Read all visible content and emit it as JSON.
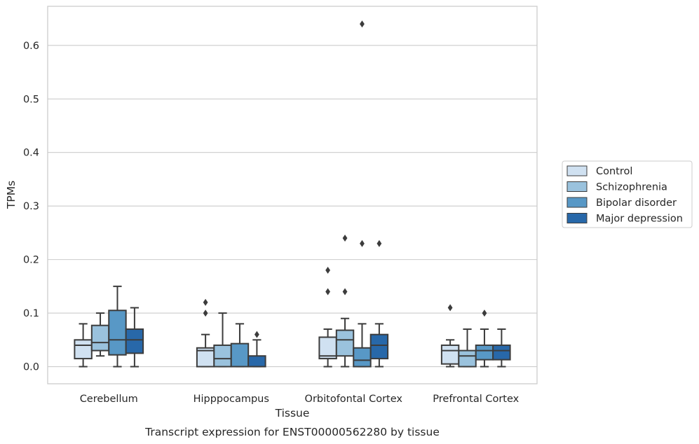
{
  "chart_data": {
    "type": "boxplot",
    "title": "",
    "xlabel": "Tissue",
    "ylabel": "TPMs",
    "caption": "Transcript expression for ENST00000562280 by tissue",
    "ylim": [
      -0.032,
      0.673
    ],
    "yticks": [
      0.0,
      0.1,
      0.2,
      0.3,
      0.4,
      0.5,
      0.6
    ],
    "ytick_labels": [
      "0.0",
      "0.1",
      "0.2",
      "0.3",
      "0.4",
      "0.5",
      "0.6"
    ],
    "grid": "horizontal",
    "legend_position": "right",
    "categories": [
      "Cerebellum",
      "Hipppocampus",
      "Orbitofontal Cortex",
      "Prefrontal Cortex"
    ],
    "series": [
      {
        "name": "Control",
        "color": "#d0e1f1",
        "boxes": [
          {
            "whislo": 0.0,
            "q1": 0.015,
            "med": 0.04,
            "q3": 0.05,
            "whishi": 0.08,
            "fliers": []
          },
          {
            "whislo": 0.0,
            "q1": 0.0,
            "med": 0.03,
            "q3": 0.035,
            "whishi": 0.06,
            "fliers": [
              0.1,
              0.12
            ]
          },
          {
            "whislo": 0.0,
            "q1": 0.015,
            "med": 0.02,
            "q3": 0.055,
            "whishi": 0.07,
            "fliers": [
              0.14,
              0.18
            ]
          },
          {
            "whislo": 0.0,
            "q1": 0.005,
            "med": 0.03,
            "q3": 0.04,
            "whishi": 0.05,
            "fliers": [
              0.11
            ]
          }
        ]
      },
      {
        "name": "Schizophrenia",
        "color": "#9ac2dd",
        "boxes": [
          {
            "whislo": 0.02,
            "q1": 0.03,
            "med": 0.045,
            "q3": 0.077,
            "whishi": 0.1,
            "fliers": []
          },
          {
            "whislo": 0.0,
            "q1": 0.0,
            "med": 0.015,
            "q3": 0.04,
            "whishi": 0.1,
            "fliers": []
          },
          {
            "whislo": 0.0,
            "q1": 0.02,
            "med": 0.05,
            "q3": 0.068,
            "whishi": 0.09,
            "fliers": [
              0.14,
              0.24
            ]
          },
          {
            "whislo": 0.0,
            "q1": 0.0,
            "med": 0.02,
            "q3": 0.03,
            "whishi": 0.07,
            "fliers": []
          }
        ]
      },
      {
        "name": "Bipolar disorder",
        "color": "#5898c6",
        "boxes": [
          {
            "whislo": 0.0,
            "q1": 0.022,
            "med": 0.05,
            "q3": 0.105,
            "whishi": 0.15,
            "fliers": []
          },
          {
            "whislo": 0.0,
            "q1": 0.0,
            "med": 0.0,
            "q3": 0.043,
            "whishi": 0.08,
            "fliers": []
          },
          {
            "whislo": 0.0,
            "q1": 0.0,
            "med": 0.012,
            "q3": 0.035,
            "whishi": 0.08,
            "fliers": [
              0.23,
              0.64
            ]
          },
          {
            "whislo": 0.0,
            "q1": 0.013,
            "med": 0.03,
            "q3": 0.04,
            "whishi": 0.07,
            "fliers": [
              0.1
            ]
          }
        ]
      },
      {
        "name": "Major depression",
        "color": "#2868a9",
        "boxes": [
          {
            "whislo": 0.0,
            "q1": 0.025,
            "med": 0.05,
            "q3": 0.07,
            "whishi": 0.11,
            "fliers": []
          },
          {
            "whislo": 0.0,
            "q1": 0.0,
            "med": 0.0,
            "q3": 0.02,
            "whishi": 0.05,
            "fliers": [
              0.06
            ]
          },
          {
            "whislo": 0.0,
            "q1": 0.015,
            "med": 0.04,
            "q3": 0.06,
            "whishi": 0.08,
            "fliers": [
              0.23
            ]
          },
          {
            "whislo": 0.0,
            "q1": 0.013,
            "med": 0.03,
            "q3": 0.04,
            "whishi": 0.07,
            "fliers": []
          }
        ]
      }
    ]
  }
}
